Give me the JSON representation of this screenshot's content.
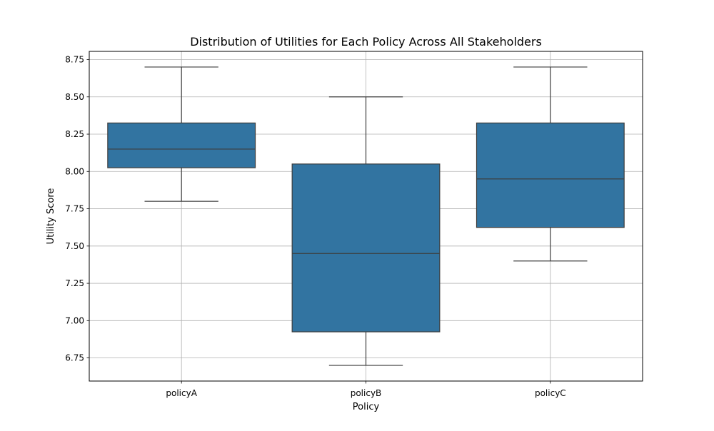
{
  "chart_data": {
    "type": "box",
    "title": "Distribution of Utilities for Each Policy Across All Stakeholders",
    "xlabel": "Policy",
    "ylabel": "Utility Score",
    "categories": [
      "policyA",
      "policyB",
      "policyC"
    ],
    "boxes": [
      {
        "category": "policyA",
        "whisker_low": 7.8,
        "q1": 8.025,
        "median": 8.15,
        "q3": 8.325,
        "whisker_high": 8.7
      },
      {
        "category": "policyB",
        "whisker_low": 6.7,
        "q1": 6.925,
        "median": 7.45,
        "q3": 8.05,
        "whisker_high": 8.5
      },
      {
        "category": "policyC",
        "whisker_low": 7.4,
        "q1": 7.625,
        "median": 7.95,
        "q3": 8.325,
        "whisker_high": 8.7
      }
    ],
    "yticks": [
      6.75,
      7.0,
      7.25,
      7.5,
      7.75,
      8.0,
      8.25,
      8.5,
      8.75
    ],
    "ytick_labels": [
      "6.75",
      "7.00",
      "7.25",
      "7.50",
      "7.75",
      "8.00",
      "8.25",
      "8.50",
      "8.75"
    ],
    "ylim": [
      6.595,
      8.805
    ],
    "grid": true,
    "colors": {
      "box_fill": "#3274a1",
      "box_edge": "#3d3d3d",
      "grid": "#b0b0b0",
      "axes": "#000000"
    }
  }
}
